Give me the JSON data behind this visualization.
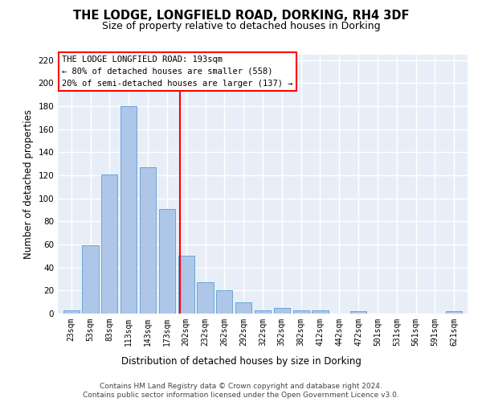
{
  "title": "THE LODGE, LONGFIELD ROAD, DORKING, RH4 3DF",
  "subtitle": "Size of property relative to detached houses in Dorking",
  "xlabel": "Distribution of detached houses by size in Dorking",
  "ylabel": "Number of detached properties",
  "footnote1": "Contains HM Land Registry data © Crown copyright and database right 2024.",
  "footnote2": "Contains public sector information licensed under the Open Government Licence v3.0.",
  "bar_labels": [
    "23sqm",
    "53sqm",
    "83sqm",
    "113sqm",
    "143sqm",
    "173sqm",
    "202sqm",
    "232sqm",
    "262sqm",
    "292sqm",
    "322sqm",
    "352sqm",
    "382sqm",
    "412sqm",
    "442sqm",
    "472sqm",
    "501sqm",
    "531sqm",
    "561sqm",
    "591sqm",
    "621sqm"
  ],
  "bar_values": [
    3,
    59,
    121,
    180,
    127,
    91,
    50,
    27,
    20,
    10,
    3,
    5,
    3,
    3,
    0,
    2,
    0,
    0,
    0,
    0,
    2
  ],
  "bar_color": "#aec6e8",
  "bar_edge_color": "#5a9fd4",
  "vline_x": 5.667,
  "vline_color": "red",
  "annotation_text": "THE LODGE LONGFIELD ROAD: 193sqm\n← 80% of detached houses are smaller (558)\n20% of semi-detached houses are larger (137) →",
  "annotation_box_color": "white",
  "annotation_box_edge_color": "red",
  "ylim": [
    0,
    225
  ],
  "yticks": [
    0,
    20,
    40,
    60,
    80,
    100,
    120,
    140,
    160,
    180,
    200,
    220
  ],
  "bg_color": "#e8eef8",
  "grid_color": "white",
  "title_fontsize": 10.5,
  "subtitle_fontsize": 9,
  "axis_label_fontsize": 8.5,
  "tick_fontsize": 7,
  "annotation_fontsize": 7.5,
  "footnote_fontsize": 6.5
}
